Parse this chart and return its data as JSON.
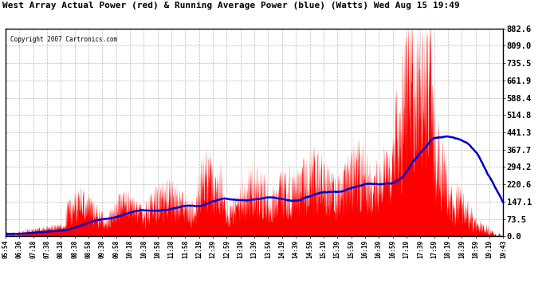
{
  "title": "West Array Actual Power (red) & Running Average Power (blue) (Watts) Wed Aug 15 19:49",
  "copyright": "Copyright 2007 Cartronics.com",
  "yticks": [
    0.0,
    73.5,
    147.1,
    220.6,
    294.2,
    367.7,
    441.3,
    514.8,
    588.4,
    661.9,
    735.5,
    809.0,
    882.6
  ],
  "ymax": 882.6,
  "ymin": 0.0,
  "actual_color": "#FF0000",
  "avg_color": "#0000CC",
  "bg_color": "#FFFFFF",
  "grid_color": "#AAAAAA",
  "xtick_labels": [
    "05:54",
    "06:36",
    "07:18",
    "07:38",
    "08:18",
    "08:38",
    "08:58",
    "09:38",
    "09:58",
    "10:18",
    "10:38",
    "10:58",
    "11:38",
    "11:58",
    "12:19",
    "12:39",
    "12:59",
    "13:19",
    "13:39",
    "13:59",
    "14:19",
    "14:39",
    "14:59",
    "15:19",
    "15:39",
    "15:59",
    "16:19",
    "16:39",
    "16:59",
    "17:19",
    "17:39",
    "17:59",
    "18:19",
    "18:39",
    "18:59",
    "19:19",
    "19:43"
  ]
}
